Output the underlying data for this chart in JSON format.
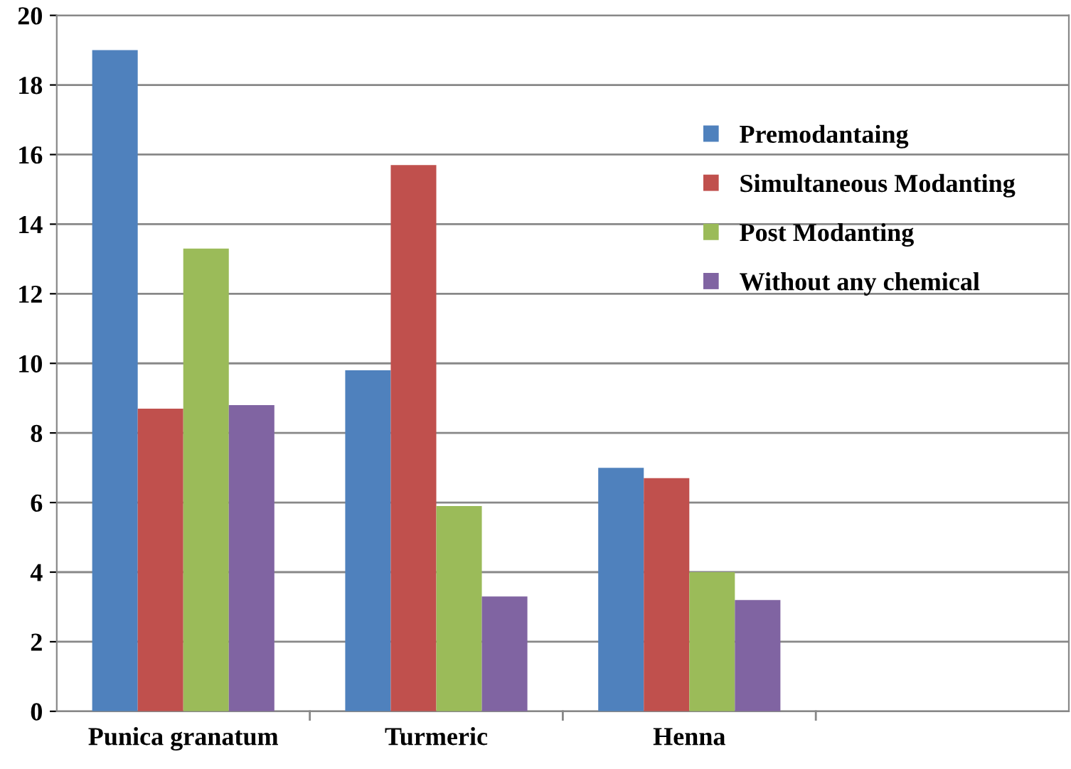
{
  "chart_data": {
    "type": "bar",
    "categories": [
      "Punica granatum",
      "Turmeric",
      "Henna",
      null
    ],
    "series": [
      {
        "name": "Premodantaing",
        "color": "#4f81bd",
        "values": [
          19.0,
          9.8,
          7.0,
          null
        ]
      },
      {
        "name": "Simultaneous Modanting",
        "color": "#c0504d",
        "values": [
          8.7,
          15.7,
          6.7,
          null
        ]
      },
      {
        "name": "Post Modanting",
        "color": "#9bbb59",
        "values": [
          13.3,
          5.9,
          4.0,
          null
        ]
      },
      {
        "name": "Without any chemical",
        "color": "#8064a2",
        "values": [
          8.8,
          3.3,
          3.2,
          null
        ]
      }
    ],
    "ylim": [
      0,
      20
    ],
    "yticks": [
      0,
      2,
      4,
      6,
      8,
      10,
      12,
      14,
      16,
      18,
      20
    ],
    "grid": "y",
    "legend": "right"
  }
}
